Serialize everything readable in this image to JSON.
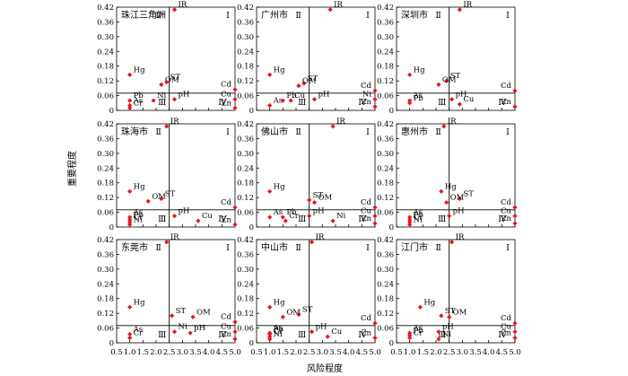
{
  "figure": {
    "ylabel": "重要程度",
    "xlabel": "风险程度",
    "x_ticks": [
      "0.5",
      "1.0",
      "1.5",
      "2.0",
      "2.5",
      "3.0",
      "3.5",
      "4.0",
      "4.5",
      "5.0"
    ],
    "y_ticks": [
      "0",
      "0.06",
      "0.12",
      "0.18",
      "0.24",
      "0.30",
      "0.36",
      "0.42"
    ],
    "quadrants": [
      "Ⅰ",
      "Ⅱ",
      "Ⅲ",
      "Ⅳ"
    ],
    "point_color": "#e8141c",
    "line_color": "#000000"
  },
  "chart_data": [
    {
      "type": "scatter",
      "title": "珠江三角洲",
      "xlim": [
        0.5,
        5.0
      ],
      "ylim": [
        0,
        0.42
      ],
      "thresholds": {
        "x": 2.5,
        "y": 0.07
      },
      "points": [
        {
          "label": "IR",
          "x": 2.7,
          "y": 0.41
        },
        {
          "label": "Hg",
          "x": 1.0,
          "y": 0.145
        },
        {
          "label": "OM",
          "x": 2.2,
          "y": 0.105
        },
        {
          "label": "ST",
          "x": 2.4,
          "y": 0.115
        },
        {
          "label": "Cd",
          "x": 5.0,
          "y": 0.085
        },
        {
          "label": "Pb",
          "x": 1.0,
          "y": 0.04
        },
        {
          "label": "Ni",
          "x": 1.9,
          "y": 0.04
        },
        {
          "label": "pH",
          "x": 2.7,
          "y": 0.045
        },
        {
          "label": "Cu",
          "x": 5.0,
          "y": 0.045
        },
        {
          "label": "As",
          "x": 1.0,
          "y": 0.02
        },
        {
          "label": "Cr",
          "x": 1.0,
          "y": 0.01
        },
        {
          "label": "Zn",
          "x": 5.0,
          "y": 0.01
        }
      ]
    },
    {
      "type": "scatter",
      "title": "广州市",
      "xlim": [
        0.5,
        5.0
      ],
      "ylim": [
        0,
        0.42
      ],
      "thresholds": {
        "x": 2.5,
        "y": 0.07
      },
      "points": [
        {
          "label": "IR",
          "x": 3.3,
          "y": 0.41
        },
        {
          "label": "Hg",
          "x": 1.0,
          "y": 0.145
        },
        {
          "label": "ST",
          "x": 2.3,
          "y": 0.11
        },
        {
          "label": "OM",
          "x": 2.1,
          "y": 0.1
        },
        {
          "label": "Cd",
          "x": 5.0,
          "y": 0.08
        },
        {
          "label": "As",
          "x": 1.0,
          "y": 0.02
        },
        {
          "label": "Pb",
          "x": 1.5,
          "y": 0.04
        },
        {
          "label": "Cu",
          "x": 1.8,
          "y": 0.04
        },
        {
          "label": "pH",
          "x": 2.7,
          "y": 0.045
        },
        {
          "label": "Ni",
          "x": 5.0,
          "y": 0.045
        },
        {
          "label": "Zn",
          "x": 5.0,
          "y": 0.015
        }
      ]
    },
    {
      "type": "scatter",
      "title": "深圳市",
      "xlim": [
        0.5,
        5.0
      ],
      "ylim": [
        0,
        0.42
      ],
      "thresholds": {
        "x": 2.5,
        "y": 0.07
      },
      "points": [
        {
          "label": "IR",
          "x": 2.9,
          "y": 0.41
        },
        {
          "label": "Hg",
          "x": 1.0,
          "y": 0.145
        },
        {
          "label": "ST",
          "x": 2.4,
          "y": 0.12
        },
        {
          "label": "OM",
          "x": 2.1,
          "y": 0.105
        },
        {
          "label": "Cd",
          "x": 5.0,
          "y": 0.08
        },
        {
          "label": "As",
          "x": 1.0,
          "y": 0.04
        },
        {
          "label": "Pb",
          "x": 1.0,
          "y": 0.03
        },
        {
          "label": "pH",
          "x": 2.6,
          "y": 0.045
        },
        {
          "label": "Cu",
          "x": 2.9,
          "y": 0.025
        },
        {
          "label": "Zn",
          "x": 5.0,
          "y": 0.015
        }
      ]
    },
    {
      "type": "scatter",
      "title": "珠海市",
      "xlim": [
        0.5,
        5.0
      ],
      "ylim": [
        0,
        0.42
      ],
      "thresholds": {
        "x": 2.5,
        "y": 0.07
      },
      "points": [
        {
          "label": "IR",
          "x": 2.4,
          "y": 0.41
        },
        {
          "label": "Hg",
          "x": 1.0,
          "y": 0.145
        },
        {
          "label": "ST",
          "x": 2.2,
          "y": 0.115
        },
        {
          "label": "OM",
          "x": 1.7,
          "y": 0.105
        },
        {
          "label": "Cd",
          "x": 5.0,
          "y": 0.08
        },
        {
          "label": "As",
          "x": 1.0,
          "y": 0.04
        },
        {
          "label": "Pb",
          "x": 1.0,
          "y": 0.03
        },
        {
          "label": "Cr",
          "x": 1.0,
          "y": 0.02
        },
        {
          "label": "Ni",
          "x": 1.0,
          "y": 0.01
        },
        {
          "label": "pH",
          "x": 2.7,
          "y": 0.045
        },
        {
          "label": "Cu",
          "x": 3.6,
          "y": 0.025
        },
        {
          "label": "Zn",
          "x": 5.0,
          "y": 0.01
        }
      ]
    },
    {
      "type": "scatter",
      "title": "佛山市",
      "xlim": [
        0.5,
        5.0
      ],
      "ylim": [
        0,
        0.42
      ],
      "thresholds": {
        "x": 2.5,
        "y": 0.07
      },
      "points": [
        {
          "label": "IR",
          "x": 3.4,
          "y": 0.41
        },
        {
          "label": "Hg",
          "x": 1.0,
          "y": 0.145
        },
        {
          "label": "ST",
          "x": 2.5,
          "y": 0.11
        },
        {
          "label": "OM",
          "x": 2.7,
          "y": 0.1
        },
        {
          "label": "Cd",
          "x": 5.0,
          "y": 0.08
        },
        {
          "label": "As",
          "x": 1.0,
          "y": 0.04
        },
        {
          "label": "Pb",
          "x": 1.5,
          "y": 0.04
        },
        {
          "label": "Cr",
          "x": 1.6,
          "y": 0.025
        },
        {
          "label": "pH",
          "x": 2.5,
          "y": 0.045
        },
        {
          "label": "Ni",
          "x": 3.4,
          "y": 0.025
        },
        {
          "label": "Cu",
          "x": 5.0,
          "y": 0.045
        },
        {
          "label": "Zn",
          "x": 5.0,
          "y": 0.015
        }
      ]
    },
    {
      "type": "scatter",
      "title": "惠州市",
      "xlim": [
        0.5,
        5.0
      ],
      "ylim": [
        0,
        0.42
      ],
      "thresholds": {
        "x": 2.5,
        "y": 0.07
      },
      "points": [
        {
          "label": "IR",
          "x": 2.3,
          "y": 0.41
        },
        {
          "label": "Hg",
          "x": 2.2,
          "y": 0.145
        },
        {
          "label": "ST",
          "x": 2.9,
          "y": 0.115
        },
        {
          "label": "OM",
          "x": 2.4,
          "y": 0.1
        },
        {
          "label": "Cd",
          "x": 5.0,
          "y": 0.08
        },
        {
          "label": "As",
          "x": 1.0,
          "y": 0.04
        },
        {
          "label": "Pb",
          "x": 1.0,
          "y": 0.03
        },
        {
          "label": "Cr",
          "x": 1.0,
          "y": 0.02
        },
        {
          "label": "Ni",
          "x": 1.0,
          "y": 0.01
        },
        {
          "label": "pH",
          "x": 2.5,
          "y": 0.045
        },
        {
          "label": "Cu",
          "x": 5.0,
          "y": 0.045
        },
        {
          "label": "Zn",
          "x": 5.0,
          "y": 0.015
        }
      ]
    },
    {
      "type": "scatter",
      "title": "东莞市",
      "xlim": [
        0.5,
        5.0
      ],
      "ylim": [
        0,
        0.42
      ],
      "thresholds": {
        "x": 2.5,
        "y": 0.07
      },
      "points": [
        {
          "label": "IR",
          "x": 2.4,
          "y": 0.41
        },
        {
          "label": "Hg",
          "x": 1.0,
          "y": 0.145
        },
        {
          "label": "ST",
          "x": 2.6,
          "y": 0.11
        },
        {
          "label": "OM",
          "x": 3.4,
          "y": 0.105
        },
        {
          "label": "Cd",
          "x": 5.0,
          "y": 0.085
        },
        {
          "label": "As",
          "x": 1.0,
          "y": 0.035
        },
        {
          "label": "Cr",
          "x": 1.0,
          "y": 0.02
        },
        {
          "label": "Ni",
          "x": 2.7,
          "y": 0.045
        },
        {
          "label": "pH",
          "x": 3.3,
          "y": 0.04
        },
        {
          "label": "Cu",
          "x": 5.0,
          "y": 0.045
        },
        {
          "label": "Zn",
          "x": 5.0,
          "y": 0.015
        }
      ]
    },
    {
      "type": "scatter",
      "title": "中山市",
      "xlim": [
        0.5,
        5.0
      ],
      "ylim": [
        0,
        0.42
      ],
      "thresholds": {
        "x": 2.5,
        "y": 0.07
      },
      "points": [
        {
          "label": "IR",
          "x": 2.6,
          "y": 0.41
        },
        {
          "label": "Hg",
          "x": 1.0,
          "y": 0.145
        },
        {
          "label": "ST",
          "x": 2.1,
          "y": 0.115
        },
        {
          "label": "OM",
          "x": 1.5,
          "y": 0.105
        },
        {
          "label": "Cd",
          "x": 5.0,
          "y": 0.08
        },
        {
          "label": "As",
          "x": 1.0,
          "y": 0.04
        },
        {
          "label": "Pb",
          "x": 1.0,
          "y": 0.035
        },
        {
          "label": "Cr",
          "x": 1.0,
          "y": 0.025
        },
        {
          "label": "Ni",
          "x": 1.0,
          "y": 0.015
        },
        {
          "label": "pH",
          "x": 2.6,
          "y": 0.045
        },
        {
          "label": "Cu",
          "x": 3.2,
          "y": 0.025
        },
        {
          "label": "Zn",
          "x": 5.0,
          "y": 0.02
        }
      ]
    },
    {
      "type": "scatter",
      "title": "江门市",
      "xlim": [
        0.5,
        5.0
      ],
      "ylim": [
        0,
        0.42
      ],
      "thresholds": {
        "x": 2.5,
        "y": 0.07
      },
      "points": [
        {
          "label": "IR",
          "x": 2.6,
          "y": 0.41
        },
        {
          "label": "Hg",
          "x": 1.4,
          "y": 0.145
        },
        {
          "label": "ST",
          "x": 2.2,
          "y": 0.11
        },
        {
          "label": "OM",
          "x": 2.5,
          "y": 0.105
        },
        {
          "label": "Cd",
          "x": 5.0,
          "y": 0.08
        },
        {
          "label": "As",
          "x": 1.0,
          "y": 0.04
        },
        {
          "label": "Pb",
          "x": 1.0,
          "y": 0.03
        },
        {
          "label": "Cr",
          "x": 1.0,
          "y": 0.02
        },
        {
          "label": "pH",
          "x": 2.1,
          "y": 0.045
        },
        {
          "label": "Ni",
          "x": 2.1,
          "y": 0.015
        },
        {
          "label": "Cu",
          "x": 5.0,
          "y": 0.045
        },
        {
          "label": "Zn",
          "x": 5.0,
          "y": 0.02
        }
      ]
    }
  ]
}
